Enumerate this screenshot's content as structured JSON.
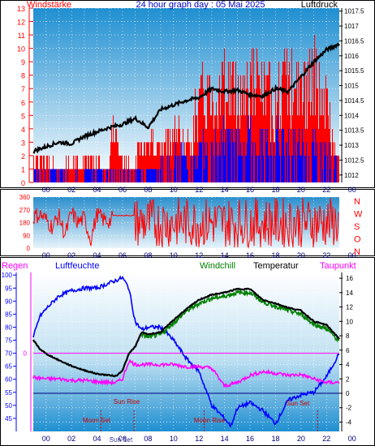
{
  "chart_data": [
    {
      "type": "line",
      "title": "24 hour graph day : 05 Mai 2025",
      "left_axis_label": "Windstärke",
      "right_axis_label": "Luftdruck",
      "left_axis_ticks": [
        "0",
        "1",
        "2",
        "3",
        "4",
        "5",
        "6",
        "7",
        "8",
        "9",
        "10",
        "11",
        "12",
        "13"
      ],
      "right_axis_ticks": [
        "1012",
        "1012.5",
        "1013",
        "1013.5",
        "1014",
        "1014.5",
        "1015",
        "1015.5",
        "1016",
        "1016.5",
        "1017",
        "1017.5"
      ],
      "x_ticks": [
        "00",
        "02",
        "04",
        "06",
        "08",
        "10",
        "12",
        "14",
        "16",
        "18",
        "20",
        "22",
        "00"
      ],
      "left_ylim": [
        0,
        13
      ],
      "right_ylim": [
        1011.75,
        1017.6
      ],
      "series": [
        {
          "axis": "right",
          "color": "#000000",
          "x": [
            0,
            1,
            2,
            3,
            4,
            5,
            6,
            7,
            8,
            9,
            10,
            11,
            12,
            13,
            14,
            15,
            16,
            17,
            18,
            19,
            20,
            21,
            22,
            23,
            24
          ],
          "values": [
            1012.8,
            1012.95,
            1013.1,
            1013.05,
            1013.3,
            1013.45,
            1013.6,
            1013.7,
            1013.9,
            1013.6,
            1014.2,
            1014.35,
            1014.5,
            1014.6,
            1014.9,
            1014.8,
            1014.85,
            1014.7,
            1014.65,
            1014.9,
            1014.8,
            1015.3,
            1015.8,
            1016.2,
            1016.4
          ]
        },
        {
          "axis": "left",
          "color": "#ff0000",
          "x": [
            0,
            1,
            2,
            3,
            4,
            5,
            5.9,
            6.1,
            7,
            7.9,
            8.2,
            9,
            10,
            11,
            12,
            13,
            14,
            15,
            16,
            17,
            18,
            19,
            20,
            21,
            22,
            23,
            23.5,
            24
          ],
          "values": [
            2,
            2,
            1,
            2,
            1.5,
            2,
            1,
            5,
            2,
            1,
            3,
            4,
            3,
            5,
            3,
            7,
            8,
            9,
            8,
            9,
            8,
            7,
            9,
            8,
            9,
            7,
            3,
            2
          ]
        },
        {
          "axis": "left",
          "color": "#0000ff",
          "x": [
            0,
            1,
            2,
            3,
            4,
            5,
            6,
            7,
            8,
            9,
            10,
            11,
            12,
            13,
            14,
            15,
            16,
            17,
            18,
            19,
            20,
            21,
            22,
            23,
            24
          ],
          "values": [
            1,
            0.5,
            1,
            0.5,
            0.5,
            1,
            0.5,
            0.5,
            1,
            1,
            1.5,
            2,
            2,
            2.5,
            3,
            3.5,
            3,
            3.5,
            3,
            3.5,
            3,
            3,
            3,
            2.5,
            1.5
          ]
        }
      ]
    },
    {
      "type": "line",
      "left_axis_ticks": [
        "0",
        "90",
        "180",
        "270",
        "360"
      ],
      "right_axis_ticks": [
        "N",
        "W",
        "S",
        "O",
        "N"
      ],
      "ylim": [
        0,
        360
      ],
      "x_ticks": [
        "00",
        "02",
        "04",
        "06",
        "08",
        "10",
        "12",
        "14",
        "16",
        "18",
        "20",
        "22",
        "00"
      ],
      "series": [
        {
          "color": "#ff0000",
          "x": [
            0,
            0.5,
            1,
            1.5,
            2,
            2.5,
            3,
            3.5,
            4,
            4.5,
            5,
            5.5,
            6,
            6.5,
            7,
            7.5,
            8,
            8.5,
            9,
            9.5,
            10,
            10.5,
            11,
            11.5,
            12,
            12.5,
            13,
            13.5,
            14,
            14.5,
            15,
            15.5,
            16,
            16.5,
            17,
            17.5,
            18,
            18.5,
            19,
            19.5,
            20,
            20.5,
            21,
            21.5,
            22,
            22.5,
            23,
            23.5,
            24
          ],
          "values": [
            220,
            240,
            200,
            150,
            230,
            90,
            250,
            180,
            210,
            60,
            240,
            200,
            190,
            230,
            230,
            230,
            80,
            300,
            50,
            280,
            120,
            330,
            40,
            260,
            190,
            350,
            60,
            300,
            150,
            20,
            340,
            200,
            90,
            310,
            30,
            280,
            170,
            60,
            320,
            220,
            100,
            330,
            40,
            260,
            300,
            150,
            350,
            80,
            40
          ]
        }
      ]
    },
    {
      "type": "line",
      "left_axis_label": "Regen",
      "humidity_label": "Luftfeuchte",
      "windchill_label": "Windchill",
      "temperature_label": "Temperatur",
      "dewpoint_label": "Taupunkt",
      "left_axis_ticks": [
        "45",
        "50",
        "55",
        "60",
        "65",
        "70",
        "75",
        "80",
        "85",
        "90",
        "95",
        "100"
      ],
      "right_axis_ticks": [
        "-4",
        "-2",
        "0",
        "2",
        "4",
        "6",
        "8",
        "10",
        "12",
        "14",
        "16"
      ],
      "rain_tick": "0",
      "left_ylim": [
        40,
        101
      ],
      "right_ylim": [
        -5.3,
        16.8
      ],
      "x_ticks": [
        "00",
        "02",
        "04",
        "06",
        "08",
        "10",
        "12",
        "14",
        "16",
        "18",
        "20",
        "22",
        "00"
      ],
      "annotations": [
        "Sun Rise",
        "Sun Set",
        "Moon Set",
        "Moon Rise",
        "Sun Set",
        "Sun Rise"
      ],
      "series": [
        {
          "name": "Luftfeuchte",
          "color": "#0000ff",
          "x": [
            0,
            0.5,
            1,
            2,
            3,
            4,
            5,
            6,
            7,
            7.5,
            8,
            8.5,
            9,
            10,
            11,
            12,
            13,
            14,
            15,
            15.5,
            16,
            17,
            18,
            19,
            20,
            21,
            22,
            23,
            24
          ],
          "values": [
            76,
            84,
            87,
            92,
            94,
            95,
            95,
            97,
            99,
            95,
            82,
            79,
            80,
            80,
            75,
            68,
            63,
            50,
            45,
            42,
            49,
            51,
            48,
            43,
            52,
            54,
            55,
            61,
            70
          ]
        },
        {
          "name": "Temperatur",
          "color": "#000000",
          "x": [
            0,
            0.5,
            1,
            2,
            3,
            4,
            5,
            5.5,
            6,
            6.5,
            7,
            7.5,
            8,
            8.5,
            9,
            10,
            11,
            12,
            13,
            14,
            15,
            16,
            17,
            18,
            19,
            20,
            21,
            22,
            23,
            24
          ],
          "values": [
            7.4,
            6.2,
            5.5,
            4.6,
            3.8,
            3.2,
            2.7,
            2.6,
            2.5,
            2.4,
            3.2,
            5.5,
            6.5,
            8.5,
            8.2,
            8.5,
            10.2,
            11.7,
            13.0,
            13.7,
            14.0,
            14.5,
            14.5,
            13.0,
            12.5,
            11.9,
            11.5,
            10.0,
            9.5,
            7.6
          ]
        },
        {
          "name": "Windchill",
          "color": "#008000",
          "x": [
            8.5,
            9,
            10,
            11,
            12,
            13,
            14,
            15,
            16,
            17,
            18,
            19,
            20,
            21,
            22,
            23,
            24
          ],
          "values": [
            8.2,
            7.8,
            8.2,
            9.8,
            11.4,
            12.5,
            13.2,
            13.5,
            14.0,
            14.0,
            12.7,
            12.1,
            11.5,
            11.0,
            9.6,
            9.0,
            7.2
          ]
        },
        {
          "name": "Taupunkt",
          "color": "#ff00ff",
          "x": [
            0,
            1,
            2,
            3,
            4,
            5,
            6,
            6.5,
            7,
            7.5,
            8,
            9,
            10,
            11,
            12,
            13,
            14,
            15,
            16,
            17,
            18,
            19,
            20,
            21,
            22,
            23,
            24
          ],
          "values": [
            2.2,
            2.0,
            2.0,
            1.8,
            1.8,
            1.6,
            1.5,
            1.5,
            2.0,
            4.5,
            4.0,
            4.0,
            4.0,
            4.0,
            3.7,
            3.7,
            3.5,
            1.0,
            1.5,
            2.5,
            3.0,
            2.8,
            2.5,
            2.6,
            2.0,
            1.5,
            1.5
          ]
        }
      ]
    }
  ]
}
